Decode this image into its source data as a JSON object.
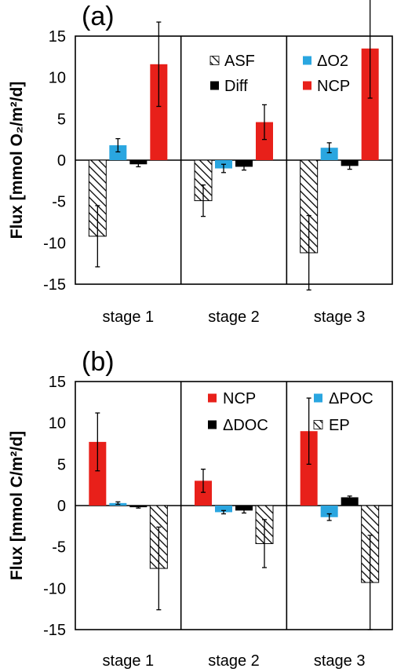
{
  "chart_data": [
    {
      "type": "bar",
      "panel_label": "(a)",
      "ylabel": "Flux [mmol O₂/m²/d]",
      "ylim": [
        -15,
        15
      ],
      "yticks": [
        -15,
        -10,
        -5,
        0,
        5,
        10,
        15
      ],
      "categories": [
        "stage 1",
        "stage 2",
        "stage 3"
      ],
      "legend": [
        [
          "ASF",
          "ΔO2"
        ],
        [
          "Diff",
          "NCP"
        ]
      ],
      "series": [
        {
          "name": "ASF",
          "fill": "hatch",
          "color": "#000000",
          "values": [
            -9.2,
            -4.9,
            -11.2
          ],
          "errors": [
            3.7,
            1.9,
            4.5
          ]
        },
        {
          "name": "ΔO2",
          "fill": "solid",
          "color": "#2aa6e0",
          "values": [
            1.8,
            -1.0,
            1.5
          ],
          "errors": [
            0.8,
            0.5,
            0.6
          ]
        },
        {
          "name": "Diff",
          "fill": "solid",
          "color": "#000000",
          "values": [
            -0.5,
            -0.8,
            -0.7
          ],
          "errors": [
            0.3,
            0.4,
            0.4
          ]
        },
        {
          "name": "NCP",
          "fill": "solid",
          "color": "#e8201a",
          "values": [
            11.6,
            4.6,
            13.5
          ],
          "errors": [
            5.1,
            2.1,
            6.0
          ]
        }
      ]
    },
    {
      "type": "bar",
      "panel_label": "(b)",
      "ylabel": "Flux [mmol C/m²/d]",
      "ylim": [
        -15,
        15
      ],
      "yticks": [
        -15,
        -10,
        -5,
        0,
        5,
        10,
        15
      ],
      "categories": [
        "stage 1",
        "stage 2",
        "stage 3"
      ],
      "legend": [
        [
          "NCP",
          "ΔPOC"
        ],
        [
          "ΔDOC",
          "EP"
        ]
      ],
      "series": [
        {
          "name": "NCP",
          "fill": "solid",
          "color": "#e8201a",
          "values": [
            7.7,
            3.0,
            9.0
          ],
          "errors": [
            3.5,
            1.4,
            4.0
          ]
        },
        {
          "name": "ΔPOC",
          "fill": "solid",
          "color": "#2aa6e0",
          "values": [
            0.3,
            -0.8,
            -1.4
          ],
          "errors": [
            0.15,
            0.2,
            0.4
          ]
        },
        {
          "name": "ΔDOC",
          "fill": "solid",
          "color": "#000000",
          "values": [
            -0.2,
            -0.6,
            1.0
          ],
          "errors": [
            0.1,
            0.3,
            0.15
          ]
        },
        {
          "name": "EP",
          "fill": "hatch",
          "color": "#000000",
          "values": [
            -7.6,
            -4.6,
            -9.3
          ],
          "errors": [
            5.0,
            2.9,
            5.7
          ]
        }
      ]
    }
  ]
}
